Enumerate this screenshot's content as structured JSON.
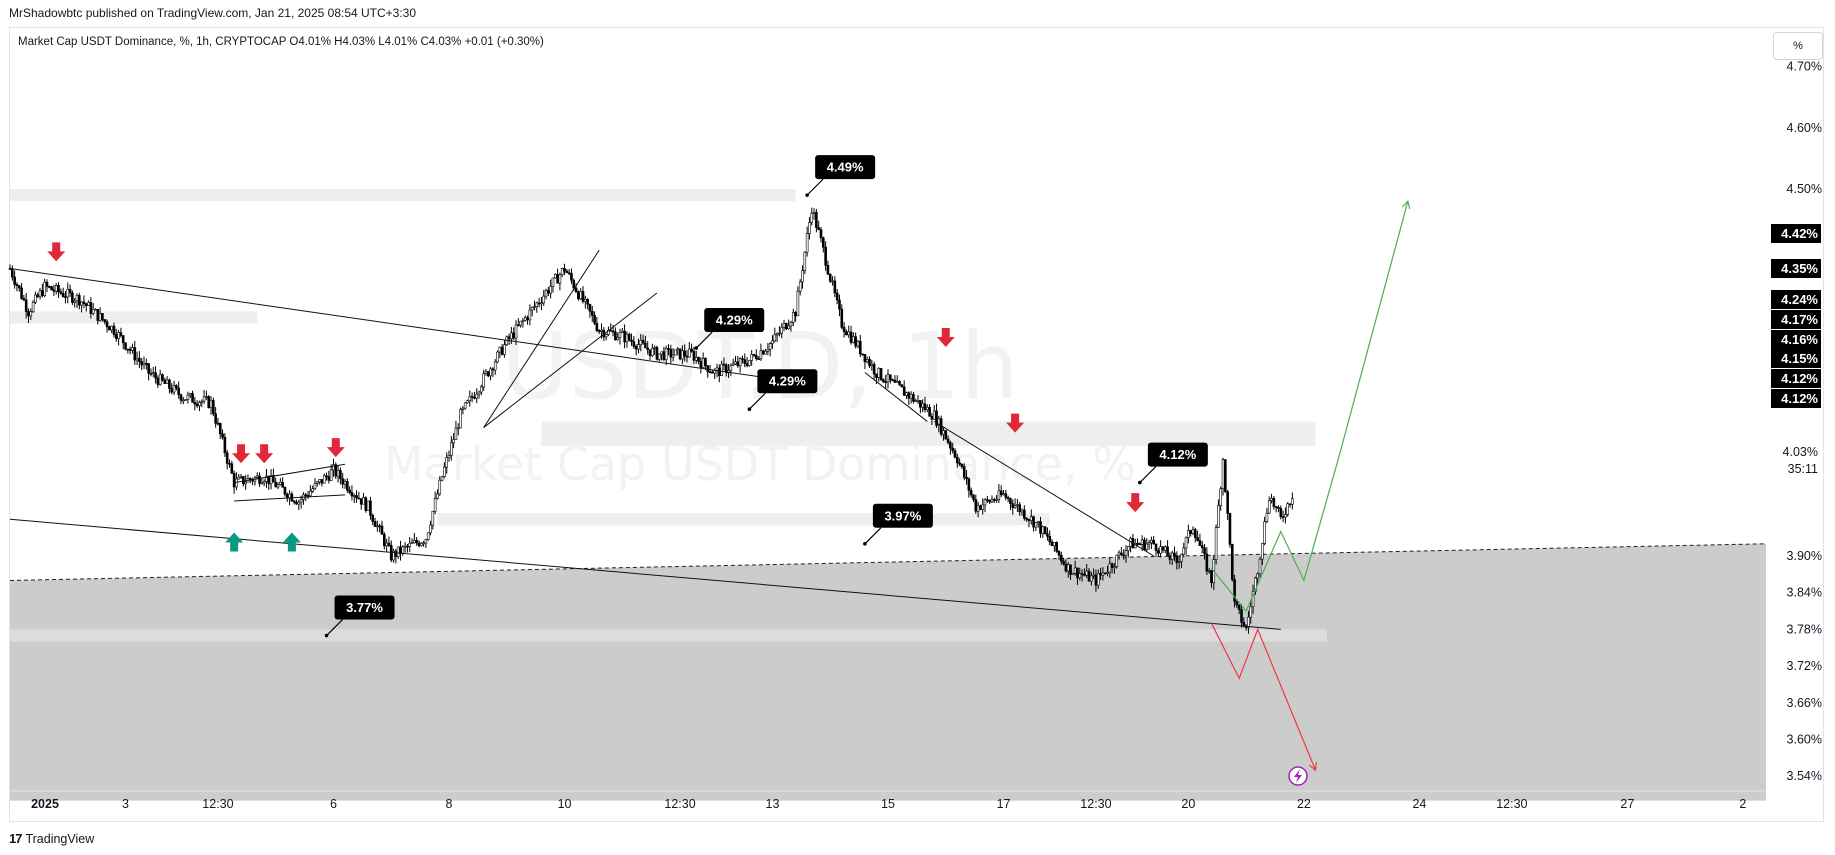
{
  "header": {
    "publisher_line": "MrShadowbtc published on TradingView.com, Jan 21, 2025 08:54 UTC+3:30",
    "legend_line": "Market Cap USDT Dominance, %, 1h, CRYPTOCAP  O4.01%  H4.03%  L4.01%  C4.03%  +0.01 (+0.30%)",
    "percent_button": "%"
  },
  "watermark": {
    "symbol": "USDT.D, 1h",
    "name": "Market Cap USDT Dominance, %"
  },
  "footer": {
    "brand_mark": "17",
    "brand": "TradingView"
  },
  "chart_data": {
    "type": "candlestick",
    "title": "Market Cap USDT Dominance, %, 1h, CRYPTOCAP",
    "ohlc_last": {
      "open": 4.01,
      "high": 4.03,
      "low": 4.01,
      "close": 4.03,
      "change": 0.01,
      "change_pct": 0.3
    },
    "y_axis": {
      "unit": "%",
      "ticks": [
        "4.70%",
        "4.60%",
        "4.50%",
        "3.90%",
        "3.84%",
        "3.78%",
        "3.72%",
        "3.66%",
        "3.60%",
        "3.54%"
      ],
      "tick_values": [
        4.7,
        4.6,
        4.5,
        3.9,
        3.84,
        3.78,
        3.72,
        3.66,
        3.6,
        3.54
      ]
    },
    "x_axis": {
      "ticks": [
        "2025",
        "3",
        "12:30",
        "6",
        "8",
        "10",
        "12:30",
        "13",
        "15",
        "17",
        "12:30",
        "20",
        "22",
        "24",
        "12:30",
        "27",
        "2"
      ],
      "tick_index": [
        0,
        50,
        90,
        140,
        190,
        240,
        290,
        330,
        380,
        430,
        470,
        510,
        560,
        610,
        650,
        700,
        750
      ]
    },
    "price_badges": [
      {
        "label": "4.42%",
        "value": 4.42,
        "color": "#000000"
      },
      {
        "label": "4.35%",
        "value": 4.35,
        "color": "#000000"
      },
      {
        "label": "4.24%",
        "value": 4.24,
        "color": "#000000"
      },
      {
        "label": "4.17%",
        "value": 4.17,
        "color": "#000000"
      },
      {
        "label": "4.16%",
        "value": 4.16,
        "color": "#000000"
      },
      {
        "label": "4.15%",
        "value": 4.15,
        "color": "#000000"
      },
      {
        "label": "4.12%",
        "value": 4.12,
        "color": "#000000"
      },
      {
        "label": "4.12%",
        "value": 4.12,
        "color": "#000000"
      }
    ],
    "last_price": {
      "label": "4.03%",
      "value": 4.03,
      "countdown": "35:11"
    },
    "callouts": [
      {
        "label": "4.49%",
        "index": 345,
        "value": 4.49
      },
      {
        "label": "4.29%",
        "index": 297,
        "value": 4.24
      },
      {
        "label": "4.29%",
        "index": 320,
        "value": 4.14
      },
      {
        "label": "4.12%",
        "index": 489,
        "value": 4.02
      },
      {
        "label": "3.97%",
        "index": 370,
        "value": 3.92
      },
      {
        "label": "3.77%",
        "index": 137,
        "value": 3.77
      }
    ],
    "zones": [
      {
        "name": "supply-zone-top",
        "from_index": 0,
        "to_index": 340,
        "low": 4.48,
        "high": 4.5,
        "color": "#eeeeef"
      },
      {
        "name": "zone-left",
        "from_index": 0,
        "to_index": 107,
        "low": 4.28,
        "high": 4.3,
        "color": "#eeeeef"
      },
      {
        "name": "zone-mid",
        "from_index": 230,
        "to_index": 565,
        "low": 4.08,
        "high": 4.12,
        "color": "#eeeeef"
      },
      {
        "name": "zone-low-mid",
        "from_index": 185,
        "to_index": 450,
        "low": 3.95,
        "high": 3.97,
        "color": "#eeeeef"
      },
      {
        "name": "demand-zone",
        "from_index": 0,
        "to_index": 570,
        "low": 3.76,
        "high": 3.78,
        "color": "#dcdcdc"
      }
    ],
    "shaded_area": {
      "top_start": 3.86,
      "top_end": 3.92,
      "bottom": 3.5,
      "color": "#cccccc"
    },
    "trend_lines": [
      {
        "from": [
          0,
          4.37
        ],
        "to": [
          330,
          4.19
        ]
      },
      {
        "from": [
          0,
          3.96
        ],
        "to": [
          550,
          3.78
        ]
      },
      {
        "from": [
          205,
          4.11
        ],
        "to": [
          255,
          4.4
        ]
      },
      {
        "from": [
          205,
          4.11
        ],
        "to": [
          280,
          4.33
        ]
      },
      {
        "from": [
          370,
          4.2
        ],
        "to": [
          397,
          4.12
        ]
      },
      {
        "from": [
          400,
          4.12
        ],
        "to": [
          495,
          3.9
        ]
      },
      {
        "from": [
          97,
          3.99
        ],
        "to": [
          145,
          4.0
        ]
      },
      {
        "from": [
          97,
          4.02
        ],
        "to": [
          145,
          4.05
        ]
      }
    ],
    "projections": [
      {
        "name": "bullish",
        "color": "#4caf50",
        "points": [
          [
            520,
            3.88
          ],
          [
            535,
            3.81
          ],
          [
            550,
            3.94
          ],
          [
            560,
            3.86
          ],
          [
            575,
            4.06
          ],
          [
            605,
            4.48
          ]
        ]
      },
      {
        "name": "bearish",
        "color": "#f23645",
        "points": [
          [
            520,
            3.79
          ],
          [
            532,
            3.7
          ],
          [
            540,
            3.78
          ],
          [
            565,
            3.55
          ]
        ]
      }
    ],
    "markers": {
      "down": [
        [
          20,
          4.38
        ],
        [
          100,
          4.05
        ],
        [
          110,
          4.05
        ],
        [
          141,
          4.06
        ],
        [
          405,
          4.24
        ],
        [
          435,
          4.1
        ],
        [
          487,
          3.97
        ]
      ],
      "up": [
        [
          97,
          3.94
        ],
        [
          122,
          3.94
        ]
      ]
    },
    "colors": {
      "up_candle": "#ffffff",
      "down_candle": "#000000",
      "wick": "#000000",
      "down_arrow": "#e0283a",
      "up_arrow": "#089981"
    }
  }
}
